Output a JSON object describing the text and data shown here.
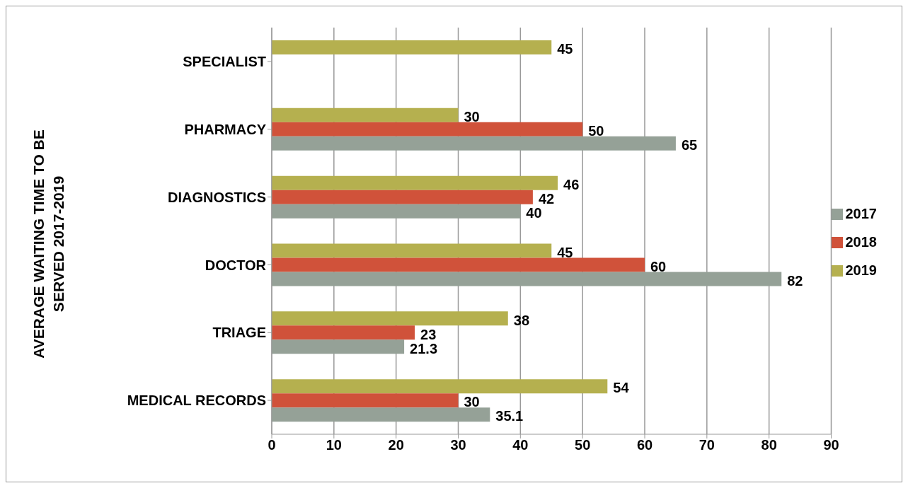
{
  "chart_data": {
    "type": "bar",
    "orientation": "horizontal",
    "ylabel": "AVERAGE WAITING TIME TO BE SERVED 2017-2019",
    "categories": [
      "SPECIALIST",
      "PHARMACY",
      "DIAGNOSTICS",
      "DOCTOR",
      "TRIAGE",
      "MEDICAL RECORDS"
    ],
    "series": [
      {
        "name": "2019",
        "color": "#b5b04f",
        "values": [
          45,
          30,
          46,
          45,
          38,
          54
        ]
      },
      {
        "name": "2018",
        "color": "#d0523a",
        "values": [
          null,
          50,
          42,
          60,
          23,
          30
        ]
      },
      {
        "name": "2017",
        "color": "#95a197",
        "values": [
          null,
          65,
          40,
          82,
          21.3,
          35.1
        ]
      }
    ],
    "xlim": [
      0,
      90
    ],
    "xticks": [
      0,
      10,
      20,
      30,
      40,
      50,
      60,
      70,
      80,
      90
    ],
    "grid": "x",
    "legend": "right",
    "data_labels": true
  }
}
